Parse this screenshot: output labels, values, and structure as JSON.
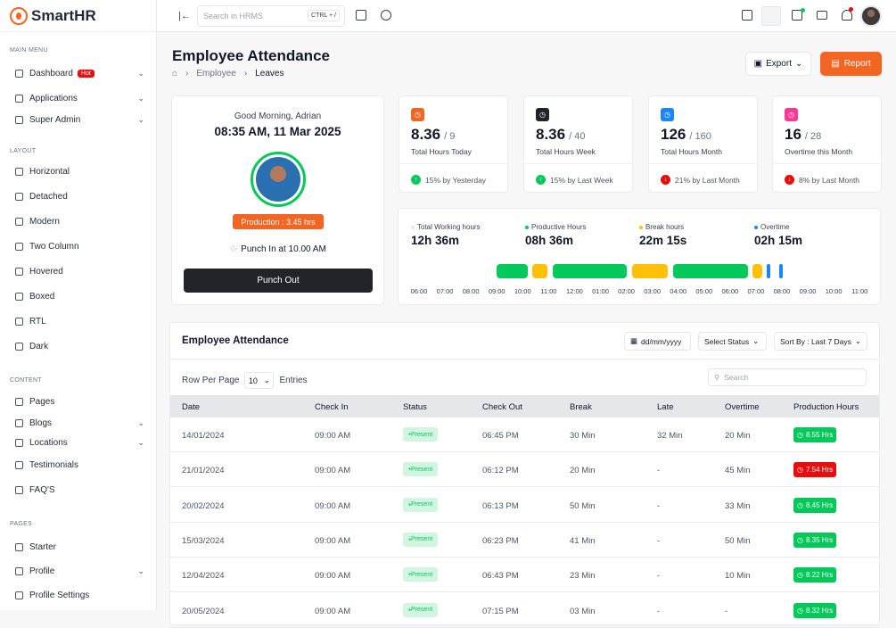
{
  "brand": {
    "name": "SmartHR",
    "accent": "#f26522"
  },
  "sidebar": {
    "main_menu_title": "MAIN MENU",
    "main": [
      {
        "label": "Dashboard",
        "badge": "Hot",
        "icon": "home-icon"
      },
      {
        "label": "Applications",
        "icon": "grid-icon"
      },
      {
        "label": "Super Admin",
        "icon": "user-star-icon"
      }
    ],
    "layout_title": "LAYOUT",
    "layout": [
      {
        "label": "Horizontal",
        "icon": "layout-horizontal-icon"
      },
      {
        "label": "Detached",
        "icon": "layout-detached-icon"
      },
      {
        "label": "Modern",
        "icon": "layout-modern-icon"
      },
      {
        "label": "Two Column",
        "icon": "layout-two-column-icon"
      },
      {
        "label": "Hovered",
        "icon": "layout-hovered-icon"
      },
      {
        "label": "Boxed",
        "icon": "layout-boxed-icon"
      },
      {
        "label": "RTL",
        "icon": "text-direction-icon"
      },
      {
        "label": "Dark",
        "icon": "moon-icon"
      }
    ],
    "content_title": "CONTENT",
    "content": [
      {
        "label": "Pages",
        "icon": "pages-icon"
      },
      {
        "label": "Blogs",
        "icon": "blog-icon"
      },
      {
        "label": "Locations",
        "icon": "location-icon"
      },
      {
        "label": "Testimonials",
        "icon": "testimonial-icon"
      },
      {
        "label": "FAQ'S",
        "icon": "question-icon"
      }
    ],
    "pages_title": "PAGES",
    "pages": [
      {
        "label": "Starter",
        "icon": "starter-icon"
      },
      {
        "label": "Profile",
        "icon": "profile-icon"
      },
      {
        "label": "Profile Settings",
        "icon": "profile-settings-icon"
      }
    ]
  },
  "topbar": {
    "search_placeholder": "Search in HRMS",
    "shortcut": "CTRL + /"
  },
  "header": {
    "title": "Employee Attendance",
    "breadcrumb": [
      "Employee",
      "Leaves"
    ],
    "export_label": "Export",
    "report_label": "Report"
  },
  "profile_card": {
    "greeting": "Good Morning, Adrian",
    "datetime": "08:35 AM, 11 Mar 2025",
    "production": "Production : 3.45 hrs",
    "punch_in": "Punch In at 10.00 AM",
    "punch_out_label": "Punch Out"
  },
  "stats": [
    {
      "value": "8.36",
      "total": "/ 9",
      "label": "Total Hours Today",
      "change": "15% by Yesterday",
      "trend": "up",
      "color": "#f26522"
    },
    {
      "value": "8.36",
      "total": "/ 40",
      "label": "Total Hours Week",
      "change": "15% by Last Week",
      "trend": "up",
      "color": "#212529"
    },
    {
      "value": "126",
      "total": "/ 160",
      "label": "Total Hours Month",
      "change": "21% by Last Month",
      "trend": "down",
      "color": "#1b84ff"
    },
    {
      "value": "16",
      "total": "/ 28",
      "label": "Overtime this Month",
      "change": "8% by Last Month",
      "trend": "down",
      "color": "#fd3995"
    }
  ],
  "hours": [
    {
      "label": "Total Working hours",
      "value": "12h 36m",
      "color": "#e5e7eb"
    },
    {
      "label": "Productive Hours",
      "value": "08h 36m",
      "color": "#03c95a"
    },
    {
      "label": "Break hours",
      "value": "22m 15s",
      "color": "#ffc107"
    },
    {
      "label": "Overtime",
      "value": "02h 15m",
      "color": "#1b84ff"
    }
  ],
  "timeline_ticks": [
    "06:00",
    "07:00",
    "08:00",
    "09:00",
    "10:00",
    "11:00",
    "12:00",
    "01:00",
    "02:00",
    "03:00",
    "04:00",
    "05:00",
    "06:00",
    "07:00",
    "08:00",
    "09:00",
    "10:00",
    "11:00"
  ],
  "attendance": {
    "title": "Employee Attendance",
    "date_filter": "dd/mm/yyyy",
    "status_filter": "Select Status",
    "sort_filter": "Sort By : Last 7 Days",
    "rows_per_page_label": "Row Per Page",
    "rows_per_page": "10",
    "entries_label": "Entries",
    "search_placeholder": "Search",
    "columns": [
      "Date",
      "Check In",
      "Status",
      "Check Out",
      "Break",
      "Late",
      "Overtime",
      "Production Hours"
    ],
    "rows": [
      {
        "date": "14/01/2024",
        "check_in": "09:00 AM",
        "status": "Present",
        "check_out": "06:45 PM",
        "break": "30 Min",
        "late": "32 Min",
        "overtime": "20 Min",
        "production": "8.55 Hrs",
        "prod_color": "#03c95a"
      },
      {
        "date": "21/01/2024",
        "check_in": "09:00 AM",
        "status": "Present",
        "check_out": "06:12 PM",
        "break": "20 Min",
        "late": "-",
        "overtime": "45 Min",
        "production": "7.54 Hrs",
        "prod_color": "#e70d0d"
      },
      {
        "date": "20/02/2024",
        "check_in": "09:00 AM",
        "status": "Present",
        "check_out": "06:13 PM",
        "break": "50 Min",
        "late": "-",
        "overtime": "33 Min",
        "production": "8.45 Hrs",
        "prod_color": "#03c95a"
      },
      {
        "date": "15/03/2024",
        "check_in": "09:00 AM",
        "status": "Present",
        "check_out": "06:23 PM",
        "break": "41 Min",
        "late": "-",
        "overtime": "50 Min",
        "production": "8.35 Hrs",
        "prod_color": "#03c95a"
      },
      {
        "date": "12/04/2024",
        "check_in": "09:00 AM",
        "status": "Present",
        "check_out": "06:43 PM",
        "break": "23 Min",
        "late": "-",
        "overtime": "10 Min",
        "production": "8.22 Hrs",
        "prod_color": "#03c95a"
      },
      {
        "date": "20/05/2024",
        "check_in": "09:00 AM",
        "status": "Present",
        "check_out": "07:15 PM",
        "break": "03 Min",
        "late": "-",
        "overtime": "-",
        "production": "8.32 Hrs",
        "prod_color": "#03c95a"
      }
    ]
  }
}
